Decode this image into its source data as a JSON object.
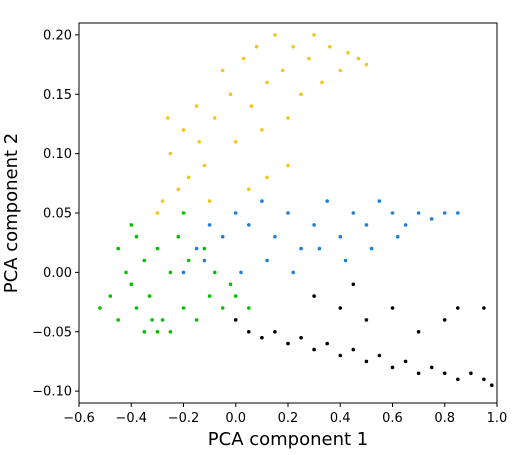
{
  "chart_data": {
    "type": "scatter",
    "title": "",
    "xlabel": "PCA component 1",
    "ylabel": "PCA component 2",
    "xlim": [
      -0.6,
      1.0
    ],
    "ylim": [
      -0.11,
      0.21
    ],
    "xticks": [
      -0.6,
      -0.4,
      -0.2,
      0.0,
      0.2,
      0.4,
      0.6,
      0.8,
      1.0
    ],
    "xtick_labels": [
      "−0.6",
      "−0.4",
      "−0.2",
      "0.0",
      "0.2",
      "0.4",
      "0.6",
      "0.8",
      "1.0"
    ],
    "yticks": [
      -0.1,
      -0.05,
      0.0,
      0.05,
      0.1,
      0.15,
      0.2
    ],
    "ytick_labels": [
      "−0.10",
      "−0.05",
      "0.00",
      "0.05",
      "0.10",
      "0.15",
      "0.20"
    ],
    "grid": false,
    "legend": "none",
    "series": [
      {
        "color": "#f5c518",
        "points": [
          [
            -0.28,
            0.06
          ],
          [
            -0.25,
            0.1
          ],
          [
            -0.2,
            0.12
          ],
          [
            -0.15,
            0.14
          ],
          [
            -0.12,
            0.09
          ],
          [
            -0.08,
            0.13
          ],
          [
            -0.05,
            0.17
          ],
          [
            -0.02,
            0.15
          ],
          [
            0.0,
            0.11
          ],
          [
            0.03,
            0.18
          ],
          [
            0.06,
            0.14
          ],
          [
            0.08,
            0.19
          ],
          [
            0.1,
            0.12
          ],
          [
            0.12,
            0.16
          ],
          [
            0.15,
            0.2
          ],
          [
            0.18,
            0.17
          ],
          [
            0.2,
            0.13
          ],
          [
            0.22,
            0.19
          ],
          [
            0.25,
            0.15
          ],
          [
            0.28,
            0.18
          ],
          [
            0.3,
            0.2
          ],
          [
            0.33,
            0.16
          ],
          [
            0.36,
            0.19
          ],
          [
            0.4,
            0.17
          ],
          [
            0.43,
            0.185
          ],
          [
            0.47,
            0.18
          ],
          [
            0.5,
            0.175
          ],
          [
            -0.3,
            0.05
          ],
          [
            -0.22,
            0.07
          ],
          [
            -0.18,
            0.08
          ],
          [
            -0.1,
            0.06
          ],
          [
            0.05,
            0.07
          ],
          [
            0.12,
            0.08
          ],
          [
            0.2,
            0.09
          ],
          [
            -0.26,
            0.13
          ],
          [
            -0.14,
            0.11
          ]
        ]
      },
      {
        "color": "#1f7fd6",
        "points": [
          [
            -0.15,
            0.02
          ],
          [
            -0.1,
            0.04
          ],
          [
            -0.05,
            0.03
          ],
          [
            0.0,
            0.05
          ],
          [
            0.05,
            0.04
          ],
          [
            0.1,
            0.06
          ],
          [
            0.15,
            0.03
          ],
          [
            0.2,
            0.05
          ],
          [
            0.25,
            0.02
          ],
          [
            0.3,
            0.04
          ],
          [
            0.35,
            0.06
          ],
          [
            0.4,
            0.03
          ],
          [
            0.45,
            0.05
          ],
          [
            0.5,
            0.04
          ],
          [
            0.55,
            0.06
          ],
          [
            0.6,
            0.05
          ],
          [
            0.65,
            0.04
          ],
          [
            0.7,
            0.05
          ],
          [
            0.75,
            0.045
          ],
          [
            0.8,
            0.05
          ],
          [
            0.85,
            0.05
          ],
          [
            -0.2,
            0.0
          ],
          [
            -0.12,
            0.01
          ],
          [
            0.02,
            0.0
          ],
          [
            0.12,
            0.01
          ],
          [
            0.22,
            0.0
          ],
          [
            0.32,
            0.02
          ],
          [
            0.42,
            0.01
          ],
          [
            0.52,
            0.02
          ],
          [
            0.62,
            0.03
          ]
        ]
      },
      {
        "color": "#00c000",
        "points": [
          [
            -0.52,
            -0.03
          ],
          [
            -0.48,
            -0.02
          ],
          [
            -0.45,
            -0.04
          ],
          [
            -0.42,
            0.0
          ],
          [
            -0.4,
            -0.01
          ],
          [
            -0.38,
            -0.03
          ],
          [
            -0.35,
            0.01
          ],
          [
            -0.33,
            -0.02
          ],
          [
            -0.3,
            0.02
          ],
          [
            -0.28,
            -0.04
          ],
          [
            -0.25,
            0.0
          ],
          [
            -0.22,
            0.03
          ],
          [
            -0.2,
            -0.03
          ],
          [
            -0.18,
            0.01
          ],
          [
            -0.15,
            -0.04
          ],
          [
            -0.12,
            0.02
          ],
          [
            -0.1,
            -0.02
          ],
          [
            -0.08,
            0.0
          ],
          [
            -0.05,
            -0.03
          ],
          [
            -0.02,
            -0.01
          ],
          [
            0.0,
            -0.02
          ],
          [
            0.05,
            -0.03
          ],
          [
            -0.45,
            0.02
          ],
          [
            -0.4,
            0.04
          ],
          [
            -0.35,
            -0.05
          ],
          [
            -0.3,
            -0.05
          ],
          [
            -0.25,
            -0.05
          ],
          [
            -0.2,
            0.05
          ],
          [
            -0.38,
            0.03
          ],
          [
            -0.32,
            -0.04
          ]
        ]
      },
      {
        "color": "#000000",
        "points": [
          [
            0.0,
            -0.04
          ],
          [
            0.05,
            -0.05
          ],
          [
            0.1,
            -0.055
          ],
          [
            0.15,
            -0.05
          ],
          [
            0.2,
            -0.06
          ],
          [
            0.25,
            -0.055
          ],
          [
            0.3,
            -0.065
          ],
          [
            0.35,
            -0.06
          ],
          [
            0.4,
            -0.07
          ],
          [
            0.45,
            -0.065
          ],
          [
            0.5,
            -0.075
          ],
          [
            0.55,
            -0.07
          ],
          [
            0.6,
            -0.08
          ],
          [
            0.65,
            -0.075
          ],
          [
            0.7,
            -0.085
          ],
          [
            0.75,
            -0.08
          ],
          [
            0.8,
            -0.085
          ],
          [
            0.85,
            -0.09
          ],
          [
            0.9,
            -0.085
          ],
          [
            0.95,
            -0.09
          ],
          [
            0.98,
            -0.095
          ],
          [
            0.3,
            -0.02
          ],
          [
            0.4,
            -0.03
          ],
          [
            0.5,
            -0.04
          ],
          [
            0.6,
            -0.03
          ],
          [
            0.7,
            -0.05
          ],
          [
            0.8,
            -0.04
          ],
          [
            0.85,
            -0.03
          ],
          [
            0.95,
            -0.03
          ],
          [
            0.45,
            -0.01
          ]
        ]
      }
    ]
  }
}
